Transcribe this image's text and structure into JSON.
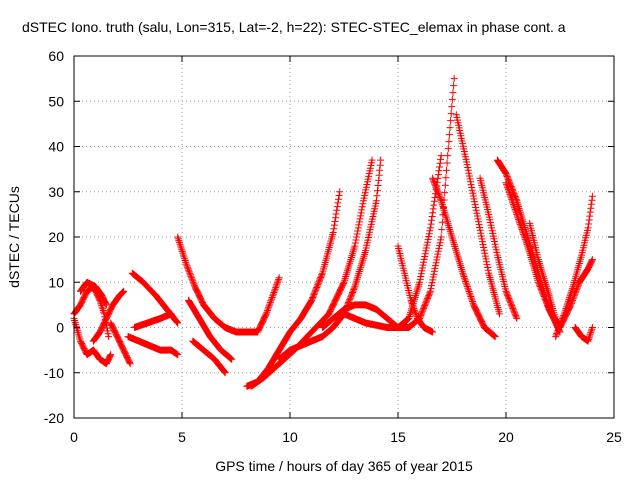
{
  "chart_data": {
    "type": "scatter",
    "title": "dSTEC Iono. truth (salu, Lon=315, Lat=-2, h=22): STEC-STEC_elemax in phase cont. a",
    "xlabel": "GPS time / hours of day 365 of year 2015",
    "ylabel": "dSTEC  / TECUs",
    "xlim": [
      0,
      25
    ],
    "ylim": [
      -20,
      60
    ],
    "x_ticks": [
      0,
      5,
      10,
      15,
      20,
      25
    ],
    "x_tick_labels": [
      "0",
      "5",
      "10",
      "15",
      "20",
      "25"
    ],
    "y_ticks": [
      -20,
      -10,
      0,
      10,
      20,
      30,
      40,
      50,
      60
    ],
    "y_tick_labels": [
      "-20",
      "-10",
      "0",
      "10",
      "20",
      "30",
      "40",
      "50",
      "60"
    ],
    "grid": true,
    "marker": "plus",
    "color": "#ff0000",
    "series": [
      {
        "x": [
          0.0,
          0.3,
          0.6,
          0.9,
          1.2,
          1.4,
          1.6
        ],
        "y": [
          3,
          5,
          8,
          9,
          6,
          3,
          -2
        ]
      },
      {
        "x": [
          0.0,
          0.3,
          0.6,
          0.9,
          1.2,
          1.5,
          1.7
        ],
        "y": [
          2,
          -3,
          -6,
          -5,
          -7,
          -8,
          -6
        ]
      },
      {
        "x": [
          0.3,
          0.6,
          1.0,
          1.3,
          1.5
        ],
        "y": [
          8,
          10,
          9,
          7,
          5
        ]
      },
      {
        "x": [
          0.9,
          1.2,
          1.5,
          1.8,
          2.1,
          2.3
        ],
        "y": [
          -3,
          -1,
          2,
          5,
          7,
          8
        ]
      },
      {
        "x": [
          1.7,
          2.0,
          2.3,
          2.6
        ],
        "y": [
          1,
          -2,
          -5,
          -8
        ]
      },
      {
        "x": [
          2.7,
          3.2,
          3.8,
          4.3,
          4.8
        ],
        "y": [
          12,
          10,
          7,
          4,
          1
        ]
      },
      {
        "x": [
          2.5,
          3.0,
          3.5,
          4.0,
          4.5,
          4.8
        ],
        "y": [
          -2,
          -3,
          -4,
          -5,
          -5,
          -6
        ]
      },
      {
        "x": [
          2.8,
          3.4,
          4.0,
          4.5
        ],
        "y": [
          0,
          1,
          2,
          3
        ]
      },
      {
        "x": [
          4.8,
          5.2,
          5.6,
          6.0,
          6.5,
          7.0,
          7.5,
          8.0,
          8.5,
          8.9,
          9.2,
          9.5
        ],
        "y": [
          20,
          14,
          9,
          5,
          2,
          0,
          -1,
          -1,
          -1,
          3,
          7,
          11
        ]
      },
      {
        "x": [
          5.3,
          5.8,
          6.3,
          6.8,
          7.3
        ],
        "y": [
          6,
          2,
          -2,
          -5,
          -7
        ]
      },
      {
        "x": [
          5.5,
          6.0,
          6.5,
          7.0
        ],
        "y": [
          -3,
          -5,
          -7,
          -10
        ]
      },
      {
        "x": [
          8.0,
          8.5,
          9.0,
          9.5,
          10.0,
          10.5,
          11.0,
          11.5,
          12.0,
          12.3
        ],
        "y": [
          -13,
          -12,
          -9,
          -5,
          -1,
          2,
          6,
          12,
          21,
          30
        ]
      },
      {
        "x": [
          8.2,
          8.8,
          9.5,
          10.2,
          11.0,
          11.8,
          12.5,
          13.0,
          13.4,
          13.8
        ],
        "y": [
          -13,
          -11,
          -8,
          -5,
          -1,
          3,
          10,
          18,
          28,
          37
        ]
      },
      {
        "x": [
          9.5,
          10.0,
          10.5,
          11.0,
          11.5,
          12.0,
          12.5,
          13.0,
          13.5,
          14.0,
          14.2
        ],
        "y": [
          -7,
          -5,
          -4,
          -3,
          -2,
          0,
          3,
          9,
          17,
          28,
          37
        ]
      },
      {
        "x": [
          11.5,
          12.0,
          12.5,
          13.0,
          13.5,
          14.0,
          14.5,
          15.0,
          15.5,
          16.0,
          16.5,
          17.0
        ],
        "y": [
          0,
          2,
          4,
          5,
          5,
          4,
          2,
          0,
          2,
          10,
          22,
          38
        ]
      },
      {
        "x": [
          12.5,
          13.5,
          14.5,
          15.5,
          16.0,
          16.5,
          17.0,
          17.3,
          17.6
        ],
        "y": [
          3,
          1,
          0,
          0,
          2,
          8,
          20,
          38,
          55
        ]
      },
      {
        "x": [
          15.0,
          15.3,
          15.6,
          15.9,
          16.2,
          16.6
        ],
        "y": [
          18,
          12,
          6,
          2,
          0,
          -1
        ]
      },
      {
        "x": [
          16.6,
          17.0,
          17.5,
          18.0,
          18.5,
          19.0,
          19.5
        ],
        "y": [
          33,
          28,
          20,
          12,
          5,
          0,
          -2
        ]
      },
      {
        "x": [
          17.7,
          18.2,
          18.7,
          19.2,
          19.7
        ],
        "y": [
          47,
          36,
          24,
          12,
          3
        ]
      },
      {
        "x": [
          18.8,
          19.2,
          19.6,
          20.0,
          20.5
        ],
        "y": [
          33,
          25,
          16,
          8,
          2
        ]
      },
      {
        "x": [
          19.6,
          20.0,
          20.5,
          21.0,
          21.5,
          22.0,
          22.5
        ],
        "y": [
          37,
          34,
          28,
          20,
          12,
          4,
          -1
        ]
      },
      {
        "x": [
          20.0,
          20.5,
          21.0,
          21.5,
          22.0,
          22.5
        ],
        "y": [
          32,
          25,
          18,
          10,
          4,
          0
        ]
      },
      {
        "x": [
          21.1,
          21.5,
          22.0,
          22.4
        ],
        "y": [
          23,
          15,
          7,
          0
        ]
      },
      {
        "x": [
          22.3,
          22.7,
          23.1,
          23.5,
          23.8,
          24.0
        ],
        "y": [
          -2,
          3,
          9,
          16,
          22,
          29
        ]
      },
      {
        "x": [
          22.5,
          23.0,
          23.4,
          23.8,
          24.0
        ],
        "y": [
          0,
          5,
          10,
          13,
          15
        ]
      },
      {
        "x": [
          23.2,
          23.5,
          23.8,
          24.0
        ],
        "y": [
          0,
          -2,
          -3,
          0
        ]
      }
    ]
  }
}
